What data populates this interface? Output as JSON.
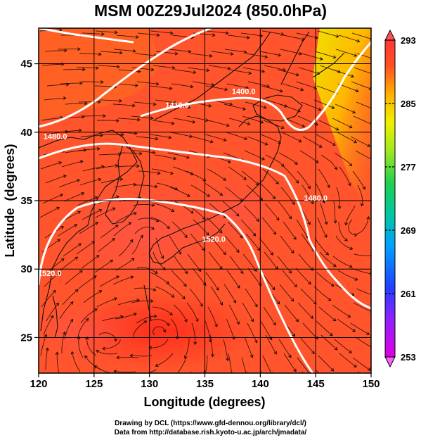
{
  "title": "MSM 00Z29Jul2024 (850.0hPa)",
  "chart_data": {
    "type": "map",
    "x_axis": {
      "label": "Longitude (degrees)",
      "range": [
        120,
        150
      ],
      "ticks": [
        120,
        125,
        130,
        135,
        140,
        145,
        150
      ]
    },
    "y_axis": {
      "label": "Latitude  (degrees)",
      "range": [
        22.4,
        47.6
      ],
      "ticks": [
        25,
        30,
        35,
        40,
        45
      ]
    },
    "fill_variable_colorbar": {
      "range": [
        253,
        293
      ],
      "tick_labels": [
        293,
        285,
        277,
        269,
        261,
        253
      ],
      "colors": [
        "#e600e6",
        "#4040ff",
        "#00c0ff",
        "#00d080",
        "#40e040",
        "#c0f000",
        "#ffff00",
        "#ffb000",
        "#ff6020",
        "#ff3030",
        "#ff5050"
      ]
    },
    "contour_labels": [
      {
        "text": "1400.0",
        "lon": 138.5,
        "lat": 42.8
      },
      {
        "text": "1410.0",
        "lon": 132.5,
        "lat": 41.8
      },
      {
        "text": "1480.0",
        "lon": 121.5,
        "lat": 39.5
      },
      {
        "text": "1480.0",
        "lon": 145.0,
        "lat": 35.0
      },
      {
        "text": "1520.0",
        "lon": 135.8,
        "lat": 32.0
      },
      {
        "text": "1520.0",
        "lon": 121.0,
        "lat": 29.5
      }
    ],
    "grid": true,
    "overlays": [
      "streamlines",
      "coastlines",
      "geopotential height contours"
    ]
  },
  "credits": {
    "line1": "Drawing by DCL (https://www.gfd-dennou.org/library/dcl/)",
    "line2": "Data from http://database.rish.kyoto-u.ac.jp/arch/jmadata/"
  }
}
